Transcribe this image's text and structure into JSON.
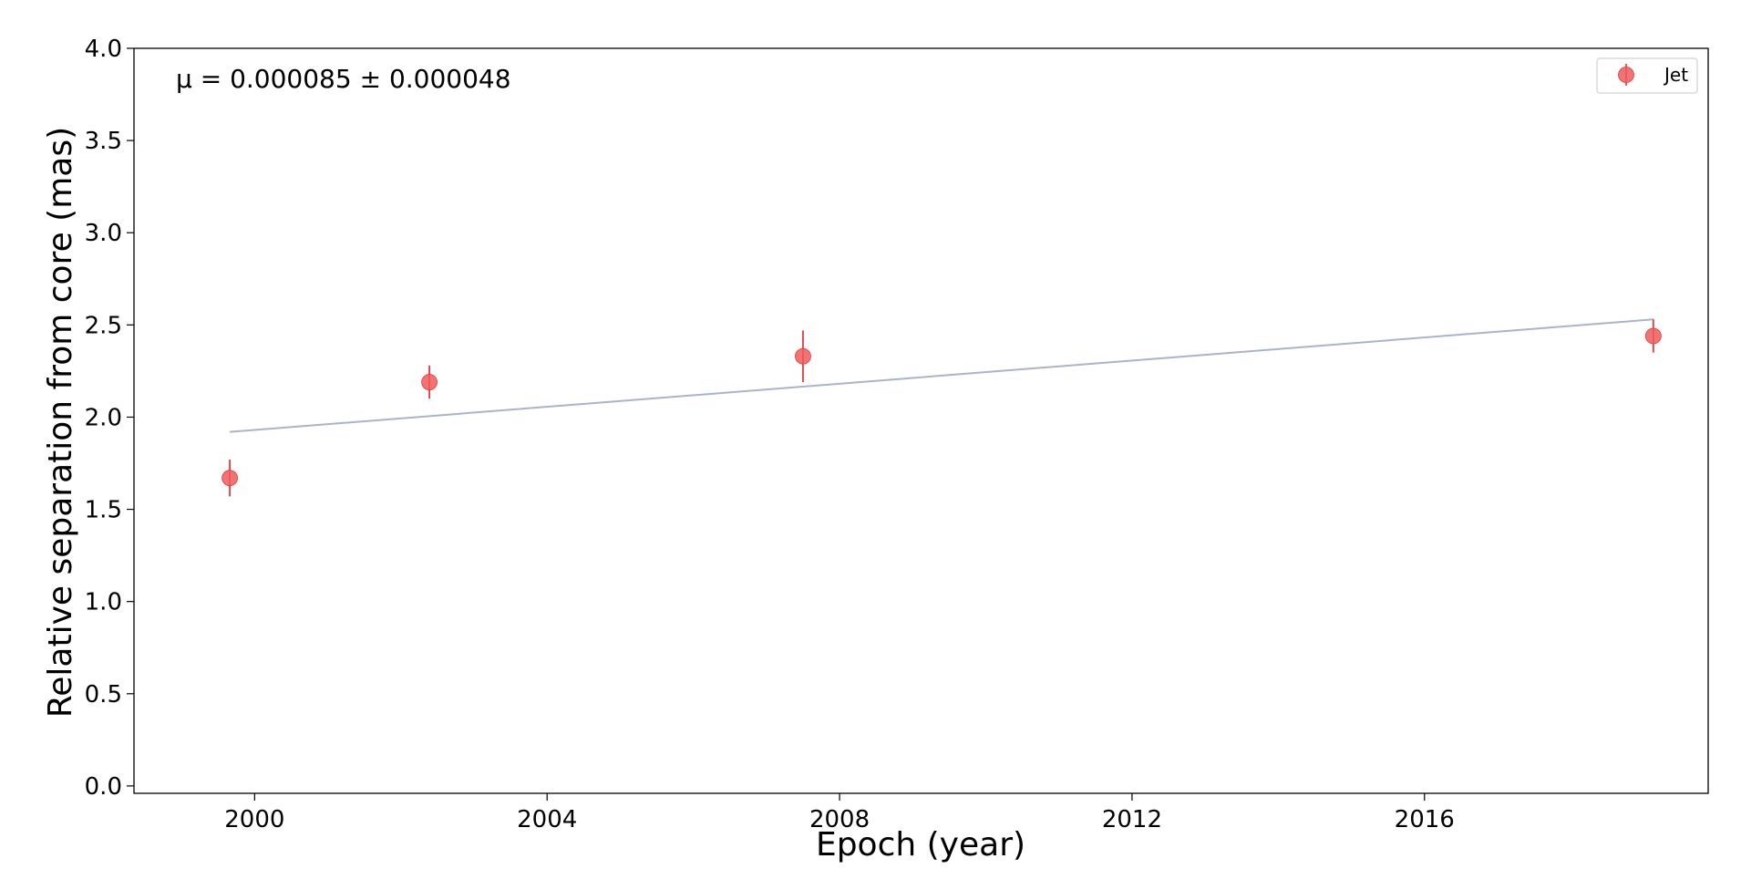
{
  "chart_data": {
    "type": "scatter",
    "title": "",
    "xlabel": "Epoch (year)",
    "ylabel": "Relative separation from core (mas)",
    "xlim": [
      1998.35,
      2019.88
    ],
    "ylim": [
      -0.04,
      4.0
    ],
    "x_ticks": [
      2000,
      2004,
      2008,
      2012,
      2016
    ],
    "x_tick_labels": [
      "2000",
      "2004",
      "2008",
      "2012",
      "2016"
    ],
    "y_ticks": [
      0.0,
      0.5,
      1.0,
      1.5,
      2.0,
      2.5,
      3.0,
      3.5,
      4.0
    ],
    "y_tick_labels": [
      "0.0",
      "0.5",
      "1.0",
      "1.5",
      "2.0",
      "2.5",
      "3.0",
      "3.5",
      "4.0"
    ],
    "grid": false,
    "legend": {
      "placement": "top-right",
      "entries": [
        "Jet"
      ]
    },
    "annotation": "μ = 0.000085 ± 0.000048",
    "series": [
      {
        "name": "Jet",
        "x": [
          1999.66,
          2002.39,
          2007.5,
          2019.13
        ],
        "y": [
          1.67,
          2.19,
          2.33,
          2.44
        ],
        "yerr": [
          0.1,
          0.09,
          0.14,
          0.09
        ],
        "marker_color": "#ee5a5a",
        "errorbar_color": "#e8393b"
      }
    ],
    "fit_line": {
      "x": [
        1999.66,
        2019.13
      ],
      "y": [
        1.92,
        2.53
      ],
      "color": "#a9b3c9"
    }
  }
}
